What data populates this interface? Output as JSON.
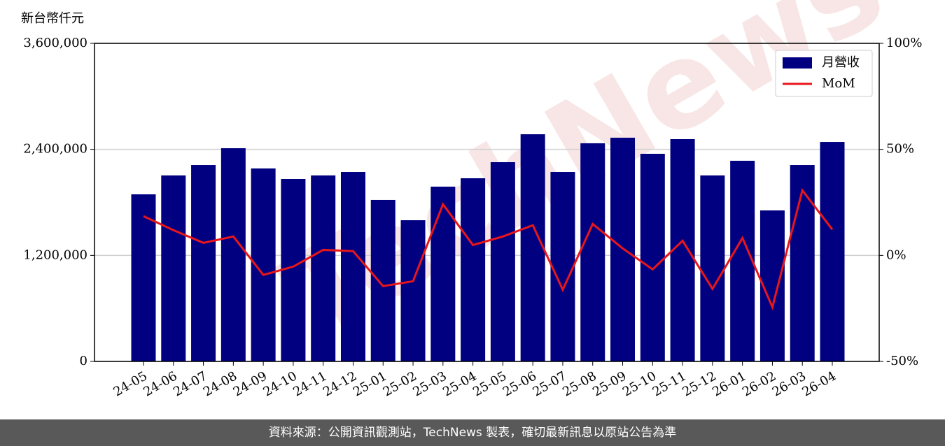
{
  "chart_data": {
    "type": "bar_line",
    "ylabel": "新台幣仟元",
    "watermark": "TechNews",
    "footer": "資料來源：公開資訊觀測站，TechNews 製表，確切最新訊息以原站公告為準",
    "categories": [
      "24-05",
      "24-06",
      "24-07",
      "24-08",
      "24-09",
      "24-10",
      "24-11",
      "24-12",
      "25-01",
      "25-02",
      "25-03",
      "25-04",
      "25-05",
      "25-06",
      "25-07",
      "25-08",
      "25-09",
      "25-10",
      "25-11",
      "25-12",
      "26-01",
      "26-02",
      "26-03",
      "26-04"
    ],
    "series": [
      {
        "name": "月營收",
        "color": "#000080",
        "type": "bar",
        "values": [
          1891000,
          2105000,
          2223000,
          2413000,
          2184000,
          2065000,
          2105000,
          2144000,
          1828000,
          1598000,
          1978000,
          2073000,
          2255000,
          2571000,
          2144000,
          2469000,
          2532000,
          2350000,
          2516000,
          2105000,
          2271000,
          1709000,
          2223000,
          2484000
        ]
      },
      {
        "name": "MoM",
        "color": "#e8161b",
        "type": "line",
        "axis": "y2",
        "values": [
          18.5,
          11.9,
          5.9,
          8.9,
          -9.2,
          -5.3,
          2.6,
          2.0,
          -14.5,
          -12.2,
          24.1,
          4.9,
          8.9,
          14.2,
          -16.2,
          14.8,
          3.3,
          -6.6,
          6.9,
          -15.8,
          8.2,
          -24.4,
          30.7,
          12.2
        ]
      }
    ],
    "ylim": [
      0,
      3600000
    ],
    "yticks": [
      0,
      {
        "value": 1200000,
        "label": "1,200,000"
      },
      {
        "value": 2400000,
        "label": "2,400,000"
      },
      {
        "value": 3600000,
        "label": "3,600,000"
      }
    ],
    "y2lim": [
      -50,
      100
    ],
    "y2ticks": [
      {
        "value": -50,
        "label": "-50%"
      },
      {
        "value": 0,
        "label": "0%"
      },
      {
        "value": 50,
        "label": "50%"
      },
      {
        "value": 100,
        "label": "100%"
      }
    ],
    "grid": true,
    "legend": "upper right"
  }
}
